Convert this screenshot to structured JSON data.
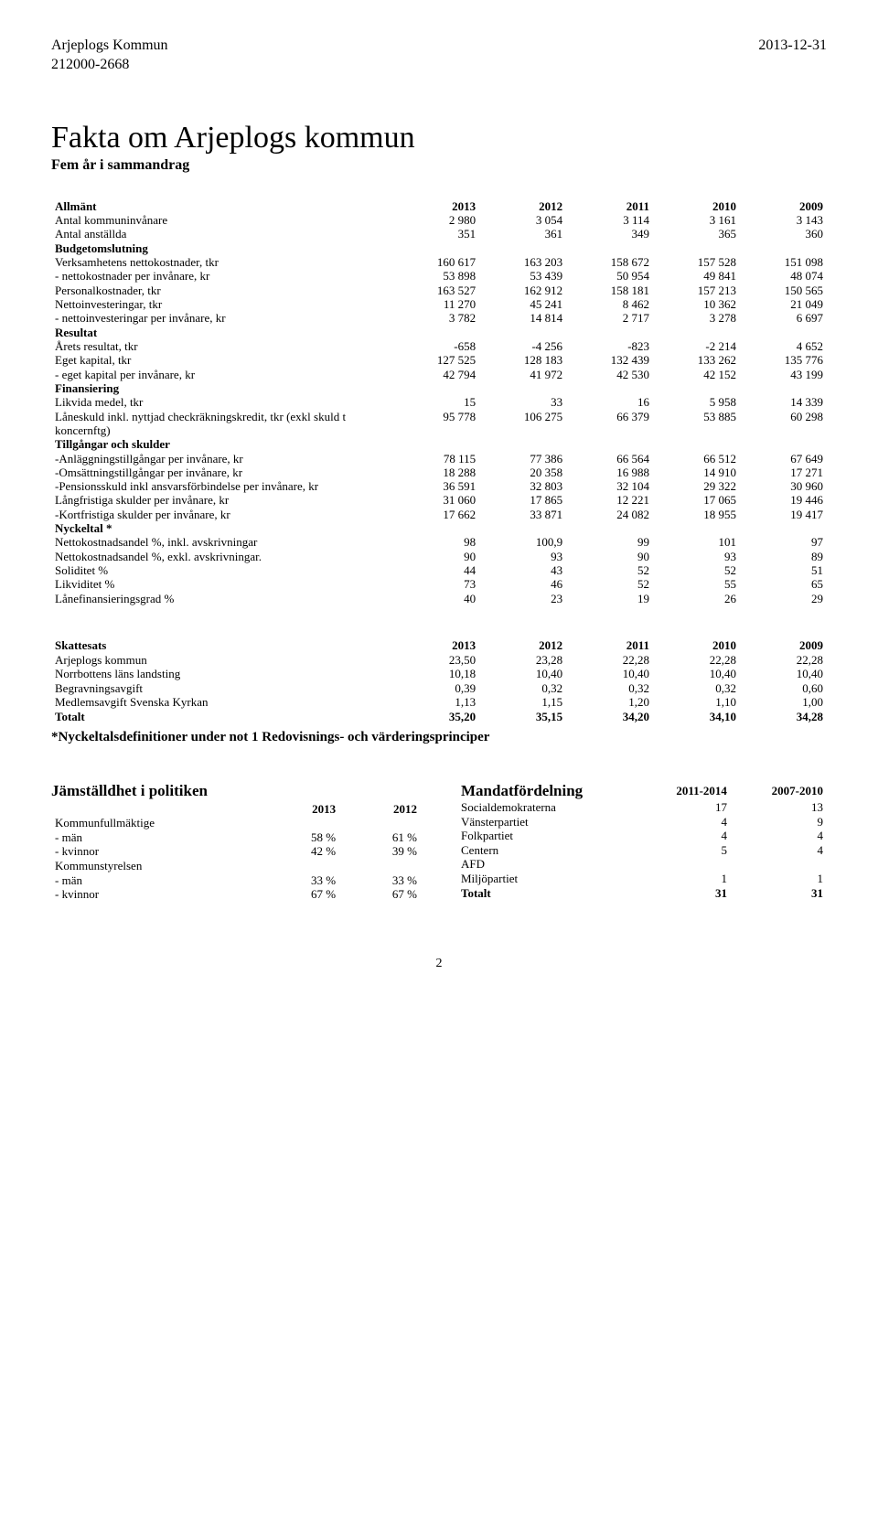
{
  "header": {
    "org": "Arjeplogs Kommun",
    "orgnr": "212000-2668",
    "date": "2013-12-31"
  },
  "title": "Fakta om Arjeplogs kommun",
  "subtitle": "Fem år i sammandrag",
  "main_table": {
    "year_cols": [
      "2013",
      "2012",
      "2011",
      "2010",
      "2009"
    ],
    "sections": [
      {
        "heading": "Allmänt",
        "rows": [
          {
            "label": "Antal kommuninvånare",
            "v": [
              "2 980",
              "3 054",
              "3 114",
              "3 161",
              "3 143"
            ]
          },
          {
            "label": "Antal anställda",
            "v": [
              "351",
              "361",
              "349",
              "365",
              "360"
            ]
          }
        ]
      },
      {
        "heading": "Budgetomslutning",
        "rows": [
          {
            "label": "Verksamhetens nettokostnader, tkr",
            "v": [
              "160 617",
              "163 203",
              "158 672",
              "157 528",
              "151 098"
            ]
          },
          {
            "label": "- nettokostnader per invånare, kr",
            "v": [
              "53 898",
              "53 439",
              "50 954",
              "49 841",
              "48 074"
            ]
          },
          {
            "label": "Personalkostnader, tkr",
            "v": [
              "163 527",
              "162 912",
              "158 181",
              "157 213",
              "150 565"
            ]
          },
          {
            "label": "Nettoinvesteringar, tkr",
            "v": [
              "11 270",
              "45 241",
              "8 462",
              "10 362",
              "21 049"
            ]
          },
          {
            "label": "- nettoinvesteringar per invånare, kr",
            "v": [
              "3 782",
              "14 814",
              "2 717",
              "3 278",
              "6 697"
            ]
          }
        ]
      },
      {
        "heading": "Resultat",
        "rows": [
          {
            "label": "Årets resultat, tkr",
            "v": [
              "-658",
              "-4 256",
              "-823",
              "-2 214",
              "4 652"
            ]
          },
          {
            "label": "Eget kapital, tkr",
            "v": [
              "127 525",
              "128 183",
              "132 439",
              "133 262",
              "135 776"
            ]
          },
          {
            "label": "- eget kapital per invånare, kr",
            "v": [
              "42 794",
              "41 972",
              "42 530",
              "42 152",
              "43 199"
            ]
          }
        ]
      },
      {
        "heading": "Finansiering",
        "rows": [
          {
            "label": "Likvida medel, tkr",
            "v": [
              "15",
              "33",
              "16",
              "5 958",
              "14 339"
            ]
          },
          {
            "label": "Låneskuld inkl. nyttjad checkräkningskredit, tkr (exkl skuld t koncernftg)",
            "v": [
              "95 778",
              "106 275",
              "66 379",
              "53 885",
              "60 298"
            ]
          }
        ]
      },
      {
        "heading": "Tillgångar och skulder",
        "rows": [
          {
            "label": "-Anläggningstillgångar per invånare, kr",
            "v": [
              "78 115",
              "77 386",
              "66 564",
              "66 512",
              "67 649"
            ]
          },
          {
            "label": "-Omsättningstillgångar per invånare, kr",
            "v": [
              "18 288",
              "20 358",
              "16 988",
              "14 910",
              "17 271"
            ]
          },
          {
            "label": "-Pensionsskuld inkl ansvarsförbindelse per invånare, kr",
            "v": [
              "36 591",
              "32 803",
              "32 104",
              "29 322",
              "30 960"
            ]
          },
          {
            "label": "Långfristiga skulder per invånare, kr",
            "v": [
              "31 060",
              "17 865",
              "12 221",
              "17 065",
              "19 446"
            ]
          },
          {
            "label": "-Kortfristiga skulder per invånare, kr",
            "v": [
              "17 662",
              "33 871",
              "24 082",
              "18 955",
              "19 417"
            ]
          }
        ]
      },
      {
        "heading": "Nyckeltal *",
        "rows": [
          {
            "label": "Nettokostnadsandel %, inkl. avskrivningar",
            "v": [
              "98",
              "100,9",
              "99",
              "101",
              "97"
            ]
          },
          {
            "label": "Nettokostnadsandel %, exkl. avskrivningar.",
            "v": [
              "90",
              "93",
              "90",
              "93",
              "89"
            ]
          },
          {
            "label": "Soliditet %",
            "v": [
              "44",
              "43",
              "52",
              "52",
              "51"
            ]
          },
          {
            "label": "Likviditet %",
            "v": [
              "73",
              "46",
              "52",
              "55",
              "65"
            ]
          },
          {
            "label": "Lånefinansieringsgrad %",
            "v": [
              "40",
              "23",
              "19",
              "26",
              "29"
            ]
          }
        ]
      }
    ]
  },
  "tax_table": {
    "heading": "Skattesats",
    "year_cols": [
      "2013",
      "2012",
      "2011",
      "2010",
      "2009"
    ],
    "rows": [
      {
        "label": "Arjeplogs kommun",
        "v": [
          "23,50",
          "23,28",
          "22,28",
          "22,28",
          "22,28"
        ]
      },
      {
        "label": "Norrbottens läns landsting",
        "v": [
          "10,18",
          "10,40",
          "10,40",
          "10,40",
          "10,40"
        ]
      },
      {
        "label": "Begravningsavgift",
        "v": [
          "0,39",
          "0,32",
          "0,32",
          "0,32",
          "0,60"
        ]
      },
      {
        "label": "Medlemsavgift Svenska Kyrkan",
        "v": [
          "1,13",
          "1,15",
          "1,20",
          "1,10",
          "1,00"
        ]
      }
    ],
    "total": {
      "label": "Totalt",
      "v": [
        "35,20",
        "35,15",
        "34,20",
        "34,10",
        "34,28"
      ]
    }
  },
  "footnote": "*Nyckeltalsdefinitioner under not 1 Redovisnings- och värderingsprinciper",
  "equality": {
    "heading": "Jämställdhet i politiken",
    "year_cols": [
      "2013",
      "2012"
    ],
    "rows": [
      {
        "label": "Kommunfullmäktige",
        "v": [
          "",
          ""
        ]
      },
      {
        "label": "- män",
        "v": [
          "58 %",
          "61 %"
        ]
      },
      {
        "label": "- kvinnor",
        "v": [
          "42 %",
          "39 %"
        ]
      },
      {
        "label": "Kommunstyrelsen",
        "v": [
          "",
          ""
        ]
      },
      {
        "label": "- män",
        "v": [
          "33 %",
          "33 %"
        ]
      },
      {
        "label": "- kvinnor",
        "v": [
          "67 %",
          "67 %"
        ]
      }
    ]
  },
  "seats": {
    "heading": "Mandatfördelning",
    "period_cols": [
      "2011-2014",
      "2007-2010"
    ],
    "rows": [
      {
        "label": "Socialdemokraterna",
        "v": [
          "17",
          "13"
        ]
      },
      {
        "label": "Vänsterpartiet",
        "v": [
          "4",
          "9"
        ]
      },
      {
        "label": "Folkpartiet",
        "v": [
          "4",
          "4"
        ]
      },
      {
        "label": "Centern",
        "v": [
          "5",
          "4"
        ]
      },
      {
        "label": "AFD",
        "v": [
          "",
          ""
        ]
      },
      {
        "label": "Miljöpartiet",
        "v": [
          "1",
          "1"
        ]
      }
    ],
    "total": {
      "label": "Totalt",
      "v": [
        "31",
        "31"
      ]
    }
  },
  "page_number": "2"
}
